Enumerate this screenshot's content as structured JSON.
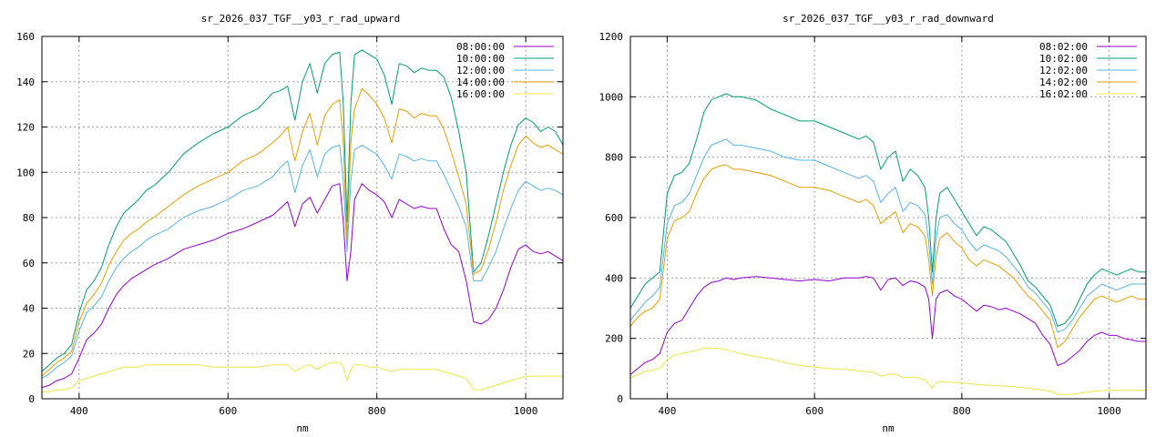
{
  "colors": {
    "08": "#9400d3",
    "10": "#009e73",
    "12": "#56b4e9",
    "14": "#e69f00",
    "16": "#f0e442",
    "lowest_blue": "#0072b2"
  },
  "chart_data": [
    {
      "type": "line",
      "title": "sr_2026_037_TGF__y03_r_rad_upward",
      "xlabel": "nm",
      "ylabel": "",
      "xlim": [
        350,
        1050
      ],
      "ylim": [
        0,
        160
      ],
      "xticks": [
        400,
        600,
        800,
        1000
      ],
      "yticks": [
        0,
        20,
        40,
        60,
        80,
        100,
        120,
        140,
        160
      ],
      "grid": true,
      "legend_position": "top-right",
      "x": [
        350,
        360,
        370,
        380,
        390,
        400,
        410,
        420,
        430,
        440,
        450,
        460,
        470,
        480,
        490,
        500,
        520,
        540,
        560,
        580,
        600,
        620,
        640,
        660,
        670,
        680,
        690,
        700,
        710,
        720,
        730,
        740,
        750,
        755,
        760,
        765,
        770,
        780,
        790,
        800,
        810,
        820,
        830,
        840,
        850,
        860,
        870,
        880,
        890,
        900,
        910,
        920,
        930,
        940,
        950,
        960,
        970,
        980,
        990,
        1000,
        1010,
        1020,
        1030,
        1040,
        1050
      ],
      "series": [
        {
          "name": "08:00:00",
          "color": "#9400d3",
          "values": [
            5,
            6,
            8,
            9,
            11,
            18,
            26,
            29,
            33,
            40,
            46,
            50,
            53,
            55,
            57,
            59,
            62,
            66,
            68,
            70,
            73,
            75,
            78,
            81,
            84,
            87,
            76,
            86,
            89,
            82,
            88,
            94,
            95,
            78,
            52,
            65,
            88,
            95,
            92,
            90,
            87,
            80,
            88,
            86,
            84,
            85,
            84,
            84,
            75,
            68,
            65,
            52,
            34,
            33,
            35,
            40,
            48,
            58,
            66,
            68,
            65,
            64,
            65,
            63,
            61
          ]
        },
        {
          "name": "10:00:00",
          "color": "#009e73",
          "values": [
            12,
            15,
            18,
            20,
            24,
            38,
            48,
            52,
            58,
            68,
            76,
            82,
            85,
            88,
            92,
            94,
            100,
            108,
            113,
            117,
            120,
            125,
            128,
            135,
            136,
            138,
            123,
            140,
            148,
            135,
            148,
            152,
            153,
            130,
            78,
            130,
            152,
            154,
            152,
            150,
            143,
            130,
            148,
            147,
            144,
            146,
            145,
            145,
            142,
            133,
            118,
            100,
            56,
            60,
            72,
            86,
            100,
            112,
            121,
            124,
            122,
            118,
            120,
            118,
            112
          ]
        },
        {
          "name": "12:00:00",
          "color": "#56b4e9",
          "values": [
            9,
            11,
            14,
            16,
            19,
            30,
            38,
            41,
            45,
            52,
            58,
            62,
            65,
            67,
            70,
            72,
            75,
            80,
            83,
            85,
            88,
            92,
            94,
            98,
            102,
            105,
            91,
            103,
            110,
            98,
            108,
            111,
            112,
            96,
            65,
            96,
            110,
            112,
            110,
            108,
            103,
            97,
            108,
            107,
            105,
            106,
            105,
            105,
            99,
            92,
            85,
            76,
            52,
            52,
            58,
            65,
            75,
            84,
            92,
            96,
            94,
            92,
            93,
            92,
            90
          ]
        },
        {
          "name": "14:00:00",
          "color": "#e69f00",
          "values": [
            10,
            13,
            16,
            18,
            21,
            34,
            42,
            46,
            51,
            59,
            65,
            70,
            73,
            75,
            78,
            80,
            85,
            90,
            94,
            97,
            100,
            105,
            108,
            113,
            116,
            120,
            105,
            118,
            126,
            112,
            125,
            130,
            132,
            113,
            70,
            113,
            128,
            137,
            134,
            130,
            124,
            113,
            128,
            127,
            124,
            126,
            125,
            125,
            119,
            109,
            98,
            86,
            55,
            57,
            66,
            78,
            92,
            103,
            112,
            116,
            113,
            111,
            112,
            110,
            108
          ]
        },
        {
          "name": "16:00:00",
          "color": "#f0e442",
          "values": [
            3,
            3,
            4,
            4,
            5,
            8,
            9,
            10,
            11,
            12,
            13,
            14,
            14,
            14,
            15,
            15,
            15,
            15,
            15,
            14,
            14,
            14,
            14,
            15,
            15,
            15,
            12,
            14,
            15,
            13,
            15,
            16,
            16,
            14,
            8,
            13,
            15,
            15,
            14,
            14,
            13,
            12,
            13,
            13,
            13,
            13,
            13,
            13,
            12,
            11,
            10,
            9,
            4,
            4,
            5,
            6,
            7,
            8,
            9,
            10,
            10,
            10,
            10,
            10,
            10
          ]
        }
      ]
    },
    {
      "type": "line",
      "title": "sr_2026_037_TGF__y03_r_rad_downward",
      "xlabel": "nm",
      "ylabel": "",
      "xlim": [
        350,
        1050
      ],
      "ylim": [
        0,
        1200
      ],
      "xticks": [
        400,
        600,
        800,
        1000
      ],
      "yticks": [
        0,
        200,
        400,
        600,
        800,
        1000,
        1200
      ],
      "grid": true,
      "legend_position": "top-right",
      "x": [
        350,
        360,
        370,
        380,
        390,
        400,
        410,
        420,
        430,
        440,
        450,
        460,
        470,
        480,
        490,
        500,
        520,
        540,
        560,
        580,
        600,
        620,
        640,
        660,
        670,
        680,
        690,
        700,
        710,
        720,
        730,
        740,
        750,
        755,
        760,
        765,
        770,
        780,
        790,
        800,
        810,
        820,
        830,
        840,
        850,
        860,
        870,
        880,
        890,
        900,
        910,
        920,
        930,
        940,
        950,
        960,
        970,
        980,
        990,
        1000,
        1010,
        1020,
        1030,
        1040,
        1050
      ],
      "series": [
        {
          "name": "08:02:00",
          "color": "#9400d3",
          "values": [
            80,
            100,
            120,
            130,
            150,
            220,
            250,
            260,
            300,
            340,
            370,
            385,
            390,
            400,
            395,
            400,
            405,
            400,
            395,
            390,
            395,
            390,
            400,
            400,
            405,
            400,
            360,
            395,
            400,
            375,
            390,
            385,
            370,
            330,
            200,
            330,
            350,
            360,
            340,
            330,
            310,
            290,
            310,
            305,
            295,
            300,
            290,
            280,
            265,
            250,
            210,
            180,
            110,
            120,
            140,
            160,
            190,
            210,
            220,
            210,
            210,
            200,
            195,
            190,
            190
          ]
        },
        {
          "name": "10:02:00",
          "color": "#009e73",
          "values": [
            300,
            340,
            380,
            400,
            420,
            680,
            740,
            750,
            780,
            860,
            950,
            990,
            1000,
            1010,
            1000,
            1000,
            990,
            960,
            940,
            920,
            920,
            900,
            880,
            860,
            870,
            850,
            760,
            800,
            820,
            720,
            760,
            740,
            700,
            600,
            420,
            600,
            680,
            700,
            660,
            620,
            580,
            540,
            570,
            560,
            540,
            520,
            480,
            440,
            390,
            370,
            340,
            310,
            240,
            250,
            280,
            330,
            380,
            410,
            430,
            420,
            410,
            420,
            430,
            420,
            420
          ]
        },
        {
          "name": "12:02:00",
          "color": "#56b4e9",
          "values": [
            260,
            290,
            320,
            340,
            370,
            580,
            640,
            650,
            680,
            740,
            800,
            840,
            850,
            860,
            840,
            840,
            830,
            820,
            800,
            790,
            790,
            770,
            750,
            730,
            740,
            720,
            650,
            680,
            700,
            620,
            650,
            640,
            610,
            520,
            380,
            530,
            600,
            610,
            580,
            560,
            520,
            490,
            510,
            500,
            490,
            470,
            440,
            410,
            370,
            350,
            320,
            290,
            220,
            230,
            260,
            300,
            340,
            360,
            380,
            370,
            360,
            370,
            380,
            380,
            380
          ]
        },
        {
          "name": "14:02:00",
          "color": "#e69f00",
          "values": [
            240,
            270,
            290,
            300,
            330,
            530,
            590,
            600,
            620,
            680,
            730,
            760,
            770,
            775,
            760,
            760,
            750,
            740,
            720,
            700,
            700,
            690,
            670,
            650,
            660,
            640,
            580,
            600,
            620,
            550,
            580,
            570,
            540,
            460,
            340,
            470,
            530,
            550,
            520,
            500,
            460,
            440,
            460,
            450,
            440,
            420,
            400,
            370,
            340,
            320,
            290,
            260,
            170,
            190,
            230,
            270,
            300,
            330,
            340,
            330,
            320,
            330,
            340,
            330,
            330
          ]
        },
        {
          "name": "16:02:00",
          "color": "#f0e442",
          "values": [
            70,
            80,
            90,
            95,
            100,
            130,
            145,
            150,
            155,
            160,
            168,
            168,
            166,
            162,
            156,
            150,
            140,
            132,
            120,
            110,
            105,
            100,
            98,
            93,
            90,
            88,
            75,
            80,
            82,
            70,
            72,
            70,
            62,
            50,
            35,
            52,
            58,
            55,
            54,
            53,
            50,
            48,
            46,
            44,
            43,
            42,
            40,
            38,
            35,
            32,
            30,
            25,
            15,
            14,
            15,
            18,
            22,
            25,
            27,
            28,
            28,
            28,
            28,
            28,
            28
          ]
        }
      ]
    }
  ]
}
